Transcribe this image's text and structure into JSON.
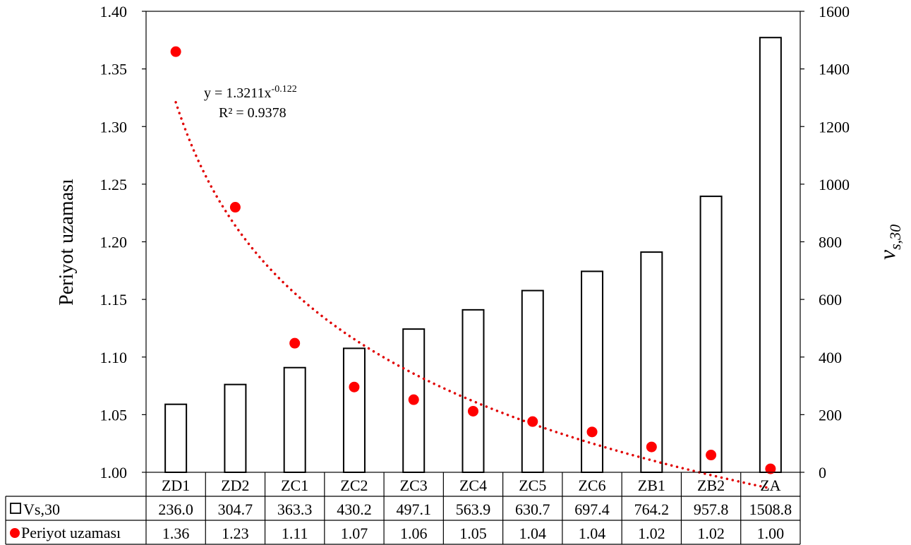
{
  "chart_data": {
    "type": "bar+scatter",
    "categories": [
      "ZD1",
      "ZD2",
      "ZC1",
      "ZC2",
      "ZC3",
      "ZC4",
      "ZC5",
      "ZC6",
      "ZB1",
      "ZB2",
      "ZA"
    ],
    "series": [
      {
        "name": "Vs,30",
        "kind": "bar",
        "axis": "right",
        "values": [
          236.0,
          304.7,
          363.3,
          430.2,
          497.1,
          563.9,
          630.7,
          697.4,
          764.2,
          957.8,
          1508.8
        ],
        "labels": [
          "236.0",
          "304.7",
          "363.3",
          "430.2",
          "497.1",
          "563.9",
          "630.7",
          "697.4",
          "764.2",
          "957.8",
          "1508.8"
        ],
        "color": "#ffffff",
        "stroke": "#000000"
      },
      {
        "name": "Periyot uzaması",
        "kind": "scatter",
        "axis": "left",
        "values": [
          1.365,
          1.23,
          1.112,
          1.074,
          1.063,
          1.053,
          1.044,
          1.035,
          1.022,
          1.015,
          1.003
        ],
        "labels": [
          "1.36",
          "1.23",
          "1.11",
          "1.07",
          "1.06",
          "1.05",
          "1.04",
          "1.04",
          "1.02",
          "1.02",
          "1.00"
        ],
        "color": "#ff0000"
      }
    ],
    "trendline": {
      "type": "power",
      "a": 1.3211,
      "b": -0.122,
      "style": "dotted",
      "color": "#e00000",
      "equation_base": "y = 1.3211x",
      "equation_exp": "-0.122",
      "r2_label": "R² = 0.9378"
    },
    "left_axis": {
      "label": "Periyot uzaması",
      "min": 1.0,
      "max": 1.4,
      "ticks": [
        "1.00",
        "1.05",
        "1.10",
        "1.15",
        "1.20",
        "1.25",
        "1.30",
        "1.35",
        "1.40"
      ]
    },
    "right_axis": {
      "label_main": "v",
      "label_sub": "s,30",
      "min": 0,
      "max": 1600,
      "ticks": [
        "0",
        "200",
        "400",
        "600",
        "800",
        "1000",
        "1200",
        "1400",
        "1600"
      ]
    },
    "legend": "data-table-below",
    "grid": false
  }
}
